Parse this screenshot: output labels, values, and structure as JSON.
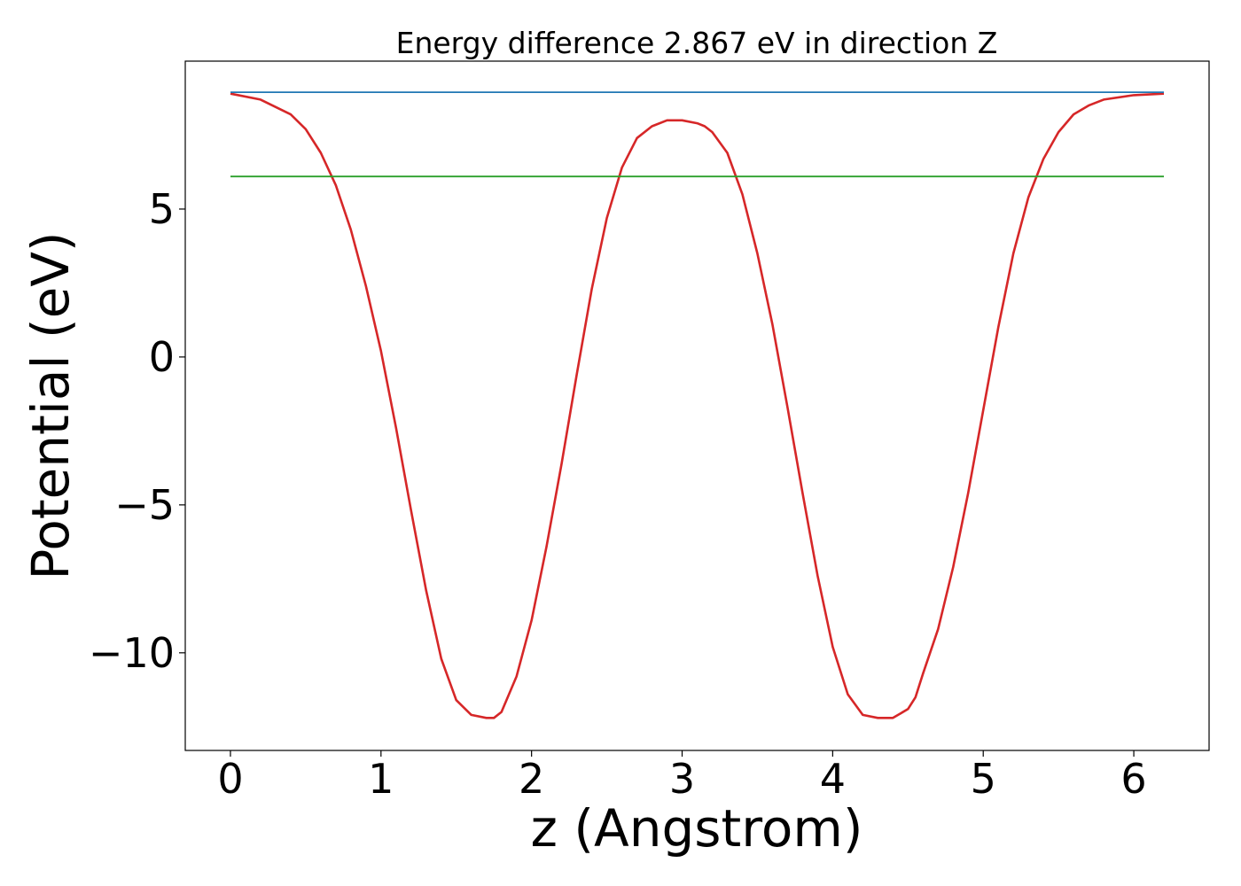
{
  "chart_data": {
    "type": "line",
    "title": "Energy difference 2.867 eV in direction Z",
    "xlabel": "z (Angstrom)",
    "ylabel": "Potential (eV)",
    "xlim": [
      -0.3,
      6.5
    ],
    "ylim": [
      -13.3,
      10.0
    ],
    "xticks": [
      0,
      1,
      2,
      3,
      4,
      5,
      6
    ],
    "xtick_labels": [
      "0",
      "1",
      "2",
      "3",
      "4",
      "5",
      "6"
    ],
    "yticks": [
      5,
      0,
      -5,
      -10
    ],
    "ytick_labels": [
      "5",
      "0",
      "−5",
      "−10"
    ],
    "grid": false,
    "series": [
      {
        "color": "#d62728",
        "x": [
          0,
          0.2,
          0.4,
          0.5,
          0.6,
          0.7,
          0.8,
          0.9,
          1.0,
          1.1,
          1.2,
          1.3,
          1.4,
          1.5,
          1.6,
          1.7,
          1.75,
          1.8,
          1.9,
          2.0,
          2.1,
          2.2,
          2.3,
          2.4,
          2.5,
          2.6,
          2.7,
          2.8,
          2.9,
          3.0,
          3.1,
          3.15,
          3.2,
          3.3,
          3.4,
          3.5,
          3.6,
          3.7,
          3.8,
          3.9,
          4.0,
          4.1,
          4.2,
          4.3,
          4.4,
          4.5,
          4.55,
          4.6,
          4.7,
          4.8,
          4.9,
          5.0,
          5.1,
          5.2,
          5.3,
          5.4,
          5.5,
          5.6,
          5.7,
          5.8,
          6.0,
          6.2
        ],
        "y": [
          8.9,
          8.7,
          8.2,
          7.7,
          6.9,
          5.8,
          4.3,
          2.4,
          0.2,
          -2.4,
          -5.2,
          -7.9,
          -10.2,
          -11.6,
          -12.1,
          -12.2,
          -12.2,
          -12.0,
          -10.8,
          -8.9,
          -6.4,
          -3.6,
          -0.6,
          2.3,
          4.7,
          6.4,
          7.4,
          7.8,
          8.0,
          8.0,
          7.9,
          7.8,
          7.6,
          6.9,
          5.5,
          3.5,
          1.1,
          -1.7,
          -4.6,
          -7.4,
          -9.8,
          -11.4,
          -12.1,
          -12.2,
          -12.2,
          -11.9,
          -11.5,
          -10.7,
          -9.2,
          -7.1,
          -4.6,
          -1.8,
          1.0,
          3.5,
          5.4,
          6.7,
          7.6,
          8.2,
          8.5,
          8.7,
          8.85,
          8.9
        ]
      },
      {
        "color": "#1f77b4",
        "x": [
          0,
          6.2
        ],
        "y": [
          8.95,
          8.95
        ]
      },
      {
        "color": "#2ca02c",
        "x": [
          0,
          6.2
        ],
        "y": [
          6.1,
          6.1
        ]
      }
    ]
  }
}
